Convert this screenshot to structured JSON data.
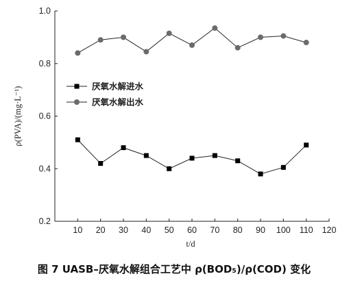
{
  "colors": {
    "series_in": "#000000",
    "series_out": "#6b6b6b",
    "line": "#222222",
    "text": "#222222"
  },
  "chart_data": {
    "type": "line",
    "title": "",
    "caption": "图 7   UASB–厌氧水解组合工艺中 ρ(BOD₅)/ρ(COD) 变化",
    "xlabel": "t/d",
    "ylabel": "ρ(PVA)/(mg·L⁻¹)",
    "xlim": [
      0,
      120
    ],
    "ylim": [
      0.2,
      1.0
    ],
    "x_ticks": [
      10,
      20,
      30,
      40,
      50,
      60,
      70,
      80,
      90,
      100,
      110,
      120
    ],
    "y_ticks": [
      0.2,
      0.4,
      0.6,
      0.8,
      1.0
    ],
    "y_tick_labels": [
      "0.2",
      "0.4",
      "0.6",
      "0.8",
      "1.0"
    ],
    "x": [
      10,
      20,
      30,
      40,
      50,
      60,
      70,
      80,
      90,
      100,
      110
    ],
    "series": [
      {
        "name": "厌氧水解进水",
        "marker": "square",
        "values": [
          0.51,
          0.42,
          0.48,
          0.45,
          0.4,
          0.44,
          0.45,
          0.43,
          0.38,
          0.405,
          0.49
        ]
      },
      {
        "name": "厌氧水解出水",
        "marker": "circle",
        "values": [
          0.84,
          0.89,
          0.9,
          0.845,
          0.915,
          0.87,
          0.935,
          0.86,
          0.9,
          0.905,
          0.88
        ]
      }
    ],
    "legend_position": "left-middle",
    "grid": false
  }
}
